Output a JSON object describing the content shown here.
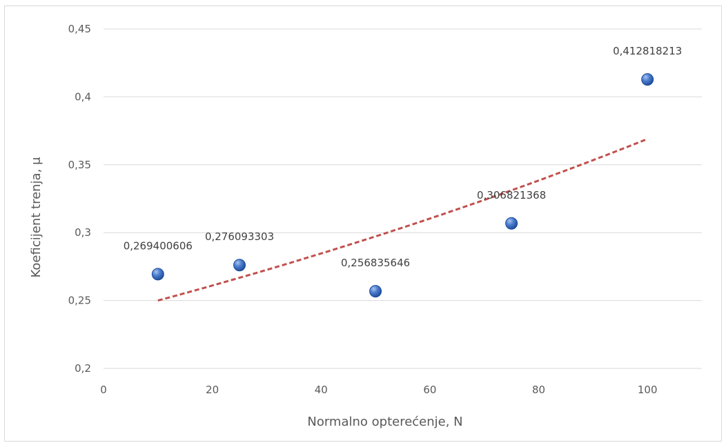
{
  "chart_data": {
    "type": "scatter",
    "title": "",
    "xlabel": "Normalno opterećenje, N",
    "ylabel": "Koeficijent trenja, μ",
    "xlim": [
      0,
      110
    ],
    "ylim": [
      0.2,
      0.45
    ],
    "x_ticks": [
      0,
      20,
      40,
      60,
      80,
      100
    ],
    "x_tick_labels": [
      "0",
      "20",
      "40",
      "60",
      "80",
      "100"
    ],
    "y_ticks": [
      0.2,
      0.25,
      0.3,
      0.35,
      0.4,
      0.45
    ],
    "y_tick_labels": [
      "0,2",
      "0,25",
      "0,3",
      "0,35",
      "0,4",
      "0,45"
    ],
    "grid": true,
    "legend": "none",
    "series": [
      {
        "x": [
          10,
          25,
          50,
          75,
          100
        ],
        "y": [
          0.269400606,
          0.276093303,
          0.256835646,
          0.306821368,
          0.412818213
        ],
        "labels": [
          "0,269400606",
          "0,276093303",
          "0,256835646",
          "0,306821368",
          "0,412818213"
        ],
        "color": "#4472c4"
      }
    ],
    "trendline": {
      "type": "exponential",
      "x_range": [
        10,
        100
      ],
      "y_start": 0.25,
      "y_end": 0.369,
      "color": "#c0504d",
      "style": "dashed"
    }
  }
}
